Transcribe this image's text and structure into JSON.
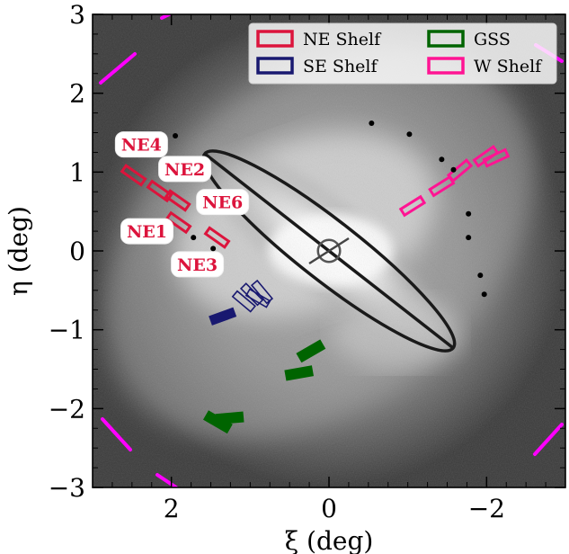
{
  "chart_data": {
    "type": "scatter",
    "title": "",
    "xlabel": "ξ (deg)",
    "ylabel": "η (deg)",
    "xlim": [
      3,
      -3
    ],
    "ylim": [
      -3,
      3
    ],
    "xticks": [
      2,
      0,
      -2
    ],
    "xtick_labels": [
      "2",
      "0",
      "−2"
    ],
    "yticks": [
      3,
      2,
      1,
      0,
      -1,
      -2,
      -3
    ],
    "ytick_labels": [
      "3",
      "2",
      "1",
      "0",
      "−1",
      "−2",
      "−3"
    ],
    "grid": false,
    "background": "grayscale sky image with M31 galaxy",
    "legend": {
      "placement": "top-right",
      "ncol": 2,
      "entries": [
        {
          "label": "NE Shelf",
          "color": "#dc143c"
        },
        {
          "label": "SE Shelf",
          "color": "#191970"
        },
        {
          "label": "GSS",
          "color": "#006400"
        },
        {
          "label": "W Shelf",
          "color": "#ff1493"
        }
      ]
    },
    "ellipse": {
      "center": [
        0,
        0
      ],
      "semi_major": 2.0,
      "semi_minor": 0.38,
      "pa_deg": 38,
      "color": "#1a1a1a"
    },
    "center_marker": {
      "x": 0,
      "y": 0,
      "radius": 0.14
    },
    "field_labels": [
      {
        "text": "NE4",
        "x": 2.38,
        "y": 1.35
      },
      {
        "text": "NE2",
        "x": 1.83,
        "y": 1.04
      },
      {
        "text": "NE6",
        "x": 1.35,
        "y": 0.62
      },
      {
        "text": "NE1",
        "x": 2.31,
        "y": 0.25
      },
      {
        "text": "NE3",
        "x": 1.67,
        "y": -0.17
      }
    ],
    "series": [
      {
        "name": "NE Shelf",
        "color": "#dc143c",
        "masks": [
          {
            "x": 2.48,
            "y": 0.96,
            "pa": -35
          },
          {
            "x": 2.15,
            "y": 0.76,
            "pa": -35
          },
          {
            "x": 1.92,
            "y": 0.64,
            "pa": -35
          },
          {
            "x": 1.91,
            "y": 0.36,
            "pa": -35
          },
          {
            "x": 1.42,
            "y": 0.17,
            "pa": -35
          }
        ]
      },
      {
        "name": "SE Shelf",
        "color": "#191970",
        "masks": [
          {
            "x": 1.08,
            "y": -0.64,
            "pa": -40,
            "filled": false
          },
          {
            "x": 0.98,
            "y": -0.55,
            "pa": -45,
            "filled": false
          },
          {
            "x": 0.9,
            "y": -0.6,
            "pa": -30,
            "filled": false
          },
          {
            "x": 0.85,
            "y": -0.52,
            "pa": -50,
            "filled": false
          },
          {
            "x": 1.35,
            "y": -0.83,
            "pa": 20,
            "filled": true
          }
        ]
      },
      {
        "name": "GSS",
        "color": "#006400",
        "masks": [
          {
            "x": 0.38,
            "y": -1.55,
            "pa": 10
          },
          {
            "x": 0.23,
            "y": -1.27,
            "pa": 30
          },
          {
            "x": 1.41,
            "y": -2.17,
            "pa": -30
          },
          {
            "x": 1.26,
            "y": -2.12,
            "pa": 5
          }
        ]
      },
      {
        "name": "W Shelf",
        "color": "#ff1493",
        "masks": [
          {
            "x": -1.06,
            "y": 0.57,
            "pa": 32
          },
          {
            "x": -1.43,
            "y": 0.82,
            "pa": 32
          },
          {
            "x": -1.66,
            "y": 1.02,
            "pa": 40
          },
          {
            "x": -1.99,
            "y": 1.2,
            "pa": 35
          },
          {
            "x": -2.12,
            "y": 1.18,
            "pa": 25
          }
        ]
      },
      {
        "name": "",
        "color": "#000000",
        "type": "points",
        "x": [
          1.95,
          1.93,
          1.9,
          1.72,
          1.47,
          -0.54,
          -1.02,
          -1.43,
          -1.58,
          -1.77,
          -1.77,
          -1.92,
          -1.97
        ],
        "y": [
          1.46,
          1.12,
          0.97,
          0.17,
          0.03,
          1.62,
          1.48,
          1.16,
          1.03,
          0.47,
          0.17,
          -0.31,
          -0.55
        ]
      }
    ],
    "corner_marks_color": "#ff00ff"
  }
}
